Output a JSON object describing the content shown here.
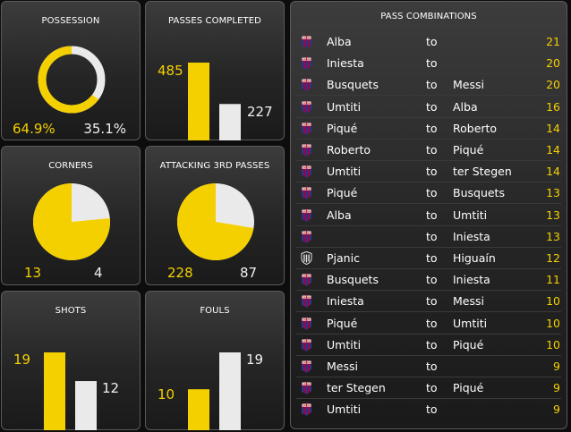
{
  "colors": {
    "home": "#f5d000",
    "away": "#eaeaea"
  },
  "chart_data": [
    {
      "id": "possession",
      "type": "pie",
      "title": "POSSESSION",
      "style": "ring",
      "labels": [
        "64.9%",
        "35.1%"
      ],
      "values": [
        64.9,
        35.1
      ]
    },
    {
      "id": "passes",
      "type": "bar",
      "title": "PASSES COMPLETED",
      "values": [
        485,
        227
      ]
    },
    {
      "id": "corners",
      "type": "pie",
      "title": "CORNERS",
      "values": [
        13,
        4
      ]
    },
    {
      "id": "attacking",
      "type": "pie",
      "title": "ATTACKING 3RD PASSES",
      "values": [
        228,
        87
      ]
    },
    {
      "id": "shots",
      "type": "bar",
      "title": "SHOTS",
      "values": [
        19,
        12
      ]
    },
    {
      "id": "fouls",
      "type": "bar",
      "title": "FOULS",
      "values": [
        10,
        19
      ]
    },
    {
      "id": "combos",
      "type": "table",
      "title": "PASS COMBINATIONS",
      "rows": [
        {
          "crest": "barcelona-crest",
          "from": "Alba",
          "to": "",
          "count": 21
        },
        {
          "crest": "barcelona-crest",
          "from": "Iniesta",
          "to": "",
          "count": 20
        },
        {
          "crest": "barcelona-crest",
          "from": "Busquets",
          "to": "Messi",
          "count": 20
        },
        {
          "crest": "barcelona-crest",
          "from": "Umtiti",
          "to": "Alba",
          "count": 16
        },
        {
          "crest": "barcelona-crest",
          "from": "Piqué",
          "to": "Roberto",
          "count": 14
        },
        {
          "crest": "barcelona-crest",
          "from": "Roberto",
          "to": "Piqué",
          "count": 14
        },
        {
          "crest": "barcelona-crest",
          "from": "Umtiti",
          "to": "ter Stegen",
          "count": 14
        },
        {
          "crest": "barcelona-crest",
          "from": "Piqué",
          "to": "Busquets",
          "count": 13
        },
        {
          "crest": "barcelona-crest",
          "from": "Alba",
          "to": "Umtiti",
          "count": 13
        },
        {
          "crest": "barcelona-crest",
          "from": "",
          "to": "Iniesta",
          "count": 13
        },
        {
          "crest": "juventus-crest",
          "from": "Pjanic",
          "to": "Higuaín",
          "count": 12
        },
        {
          "crest": "barcelona-crest",
          "from": "Busquets",
          "to": "Iniesta",
          "count": 11
        },
        {
          "crest": "barcelona-crest",
          "from": "Iniesta",
          "to": "Messi",
          "count": 10
        },
        {
          "crest": "barcelona-crest",
          "from": "Piqué",
          "to": "Umtiti",
          "count": 10
        },
        {
          "crest": "barcelona-crest",
          "from": "Umtiti",
          "to": "Piqué",
          "count": 10
        },
        {
          "crest": "barcelona-crest",
          "from": "Messi",
          "to": "",
          "count": 9
        },
        {
          "crest": "barcelona-crest",
          "from": "ter Stegen",
          "to": "Piqué",
          "count": 9
        },
        {
          "crest": "barcelona-crest",
          "from": "Umtiti",
          "to": "",
          "count": 9
        }
      ]
    }
  ],
  "combos_connector": "to"
}
